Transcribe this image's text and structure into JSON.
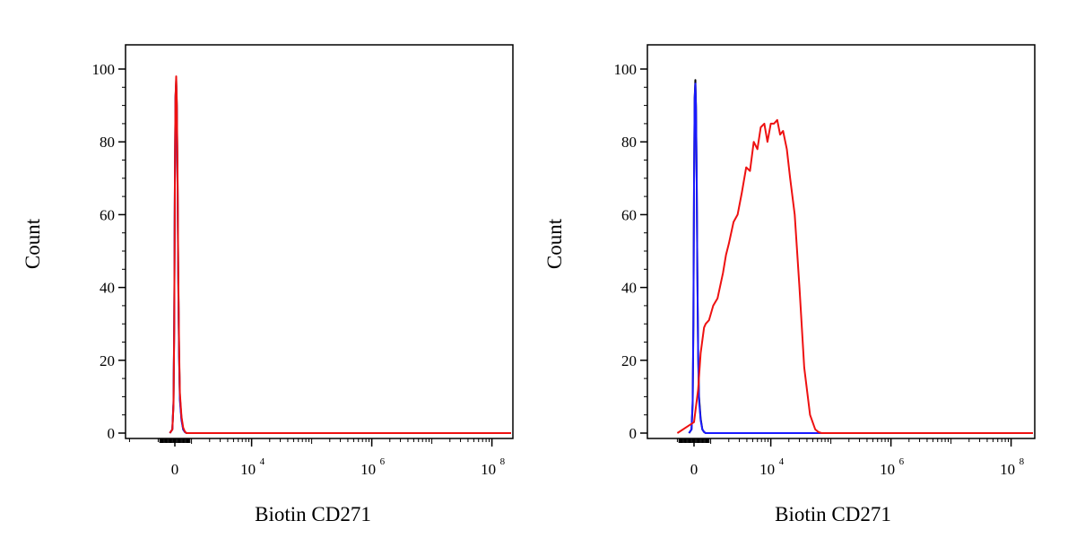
{
  "chart_data": [
    {
      "type": "line",
      "xlabel": "Biotin CD271",
      "ylabel": "Count",
      "xscale": "biexponential",
      "ylim": [
        0,
        100
      ],
      "yticks": [
        "0",
        "20",
        "40",
        "60",
        "80",
        "100"
      ],
      "xticks": [
        {
          "value": 0,
          "base": "0",
          "exp": ""
        },
        {
          "value": 10000,
          "base": "10",
          "exp": "4"
        },
        {
          "value": 1000000,
          "base": "10",
          "exp": "6"
        },
        {
          "value": 100000000,
          "base": "10",
          "exp": "8"
        }
      ],
      "series": [
        {
          "color": "#000000",
          "x": [
            -300,
            -150,
            -80,
            -40,
            0,
            40,
            80,
            120,
            160,
            200,
            250,
            300,
            400,
            500,
            600,
            700
          ],
          "y": [
            0,
            1,
            8,
            30,
            68,
            92,
            97,
            90,
            70,
            45,
            22,
            10,
            4,
            1,
            0.3,
            0
          ]
        },
        {
          "color": "#1a1aff",
          "x": [
            -300,
            -150,
            -80,
            -40,
            0,
            40,
            80,
            120,
            160,
            200,
            250,
            300,
            400,
            500,
            600,
            700
          ],
          "y": [
            0,
            1,
            9,
            31,
            68,
            92,
            96,
            89,
            69,
            44,
            21,
            9,
            3.5,
            1,
            0.3,
            0
          ]
        },
        {
          "color": "#ee1111",
          "x": [
            -300,
            -150,
            -80,
            -40,
            0,
            40,
            80,
            120,
            160,
            200,
            250,
            300,
            400,
            500,
            600,
            700
          ],
          "y": [
            0,
            1,
            8,
            29,
            67,
            92,
            98,
            91,
            72,
            47,
            24,
            11,
            4.5,
            1.5,
            0.4,
            0
          ]
        }
      ]
    },
    {
      "type": "line",
      "xlabel": "Biotin CD271",
      "ylabel": "Count",
      "xscale": "biexponential",
      "ylim": [
        0,
        100
      ],
      "yticks": [
        "0",
        "20",
        "40",
        "60",
        "80",
        "100"
      ],
      "xticks": [
        {
          "value": 0,
          "base": "0",
          "exp": ""
        },
        {
          "value": 10000,
          "base": "10",
          "exp": "4"
        },
        {
          "value": 1000000,
          "base": "10",
          "exp": "6"
        },
        {
          "value": 100000000,
          "base": "10",
          "exp": "8"
        }
      ],
      "series": [
        {
          "color": "#000000",
          "x": [
            -300,
            -150,
            -80,
            -40,
            0,
            40,
            80,
            120,
            160,
            200,
            250,
            300,
            400,
            500,
            600,
            700
          ],
          "y": [
            0,
            1,
            8,
            30,
            68,
            92,
            97,
            90,
            70,
            45,
            22,
            10,
            4,
            1,
            0.3,
            0
          ]
        },
        {
          "color": "#1a1aff",
          "x": [
            -300,
            -150,
            -80,
            -40,
            0,
            40,
            80,
            120,
            160,
            200,
            250,
            300,
            400,
            500,
            600,
            700
          ],
          "y": [
            0,
            1,
            9,
            31,
            68,
            92,
            96,
            89,
            69,
            44,
            21,
            9,
            3.5,
            1,
            0.3,
            0
          ]
        },
        {
          "color": "#ee1111",
          "x": [
            -1000,
            0,
            250,
            400,
            600,
            700,
            900,
            1100,
            1300,
            1600,
            1800,
            2000,
            2400,
            2800,
            3300,
            3900,
            4500,
            5200,
            6000,
            6800,
            7800,
            8800,
            10000,
            11300,
            12800,
            14300,
            16000,
            18500,
            21000,
            25000,
            30000,
            36000,
            45000,
            55000,
            62000,
            70000
          ],
          "y": [
            0,
            3,
            12,
            22,
            29,
            30,
            31,
            35,
            37,
            44,
            49,
            52,
            58,
            60,
            66,
            73,
            72,
            80,
            78,
            84,
            85,
            80,
            85,
            85,
            86,
            82,
            83,
            78,
            70,
            60,
            40,
            18,
            5,
            1,
            0.3,
            0
          ]
        }
      ]
    }
  ]
}
